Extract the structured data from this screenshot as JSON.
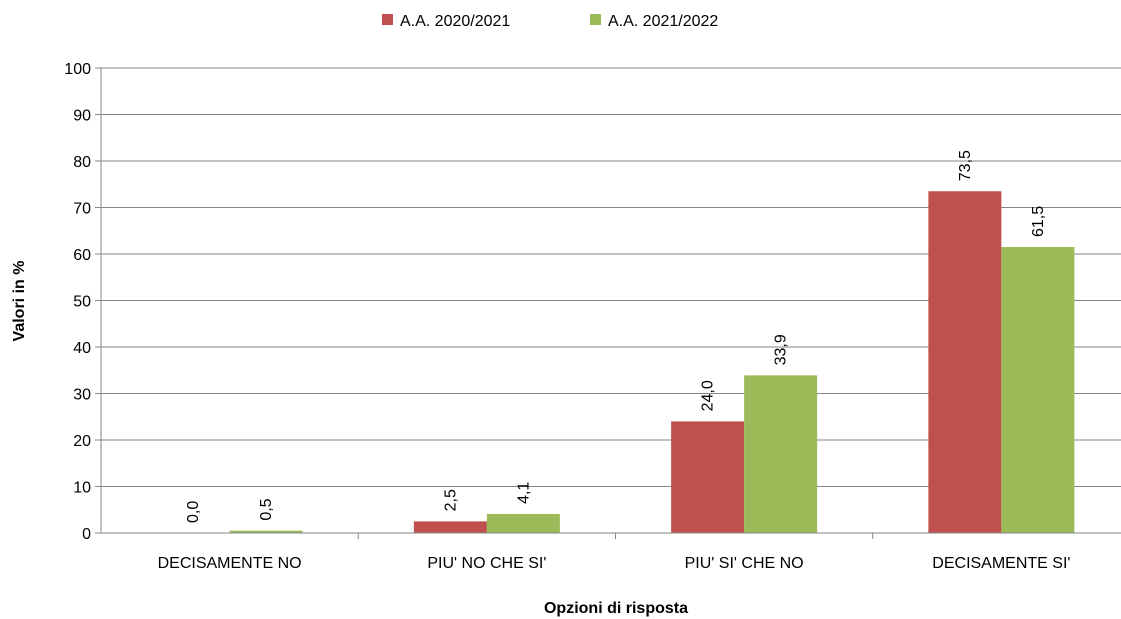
{
  "chart_data": {
    "type": "bar",
    "categories": [
      "DECISAMENTE NO",
      "PIU' NO CHE SI'",
      "PIU' SI' CHE NO",
      "DECISAMENTE SI'"
    ],
    "series": [
      {
        "name": "A.A. 2020/2021",
        "values": [
          0.0,
          2.5,
          24.0,
          73.5
        ],
        "labels": [
          "0,0",
          "2,5",
          "24,0",
          "73,5"
        ],
        "color": "#C0504D"
      },
      {
        "name": "A.A. 2021/2022",
        "values": [
          0.5,
          4.1,
          33.9,
          61.5
        ],
        "labels": [
          "0,5",
          "4,1",
          "33,9",
          "61,5"
        ],
        "color": "#9BBB59"
      }
    ],
    "xlabel": "Opzioni di risposta",
    "ylabel": "Valori in %",
    "ylim": [
      0,
      100
    ],
    "yticks": [
      0,
      10,
      20,
      30,
      40,
      50,
      60,
      70,
      80,
      90,
      100
    ],
    "grid": true,
    "legend": "top-center",
    "gridColor": "#868686"
  }
}
